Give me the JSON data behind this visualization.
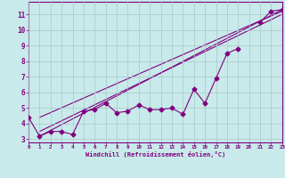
{
  "x": [
    0,
    1,
    2,
    3,
    4,
    5,
    6,
    7,
    8,
    9,
    10,
    11,
    12,
    13,
    14,
    15,
    16,
    17,
    18,
    19,
    20,
    21,
    22,
    23
  ],
  "line1": [
    4.4,
    3.2,
    3.5,
    3.5,
    3.3,
    4.8,
    4.9,
    5.3,
    4.7,
    4.8,
    5.2,
    4.9,
    4.9,
    5.0,
    4.6,
    6.2,
    5.3,
    6.9,
    8.5,
    8.8,
    null,
    10.5,
    11.2,
    11.3
  ],
  "line2_x": [
    1,
    23
  ],
  "line2_y": [
    3.2,
    11.3
  ],
  "line3_x": [
    1,
    23
  ],
  "line3_y": [
    3.5,
    11.0
  ],
  "line4_x": [
    1,
    23
  ],
  "line4_y": [
    4.4,
    11.2
  ],
  "color": "#800080",
  "bg_color": "#c8eaea",
  "grid_color": "#aac8c8",
  "xlabel": "Windchill (Refroidissement éolien,°C)",
  "ylabel_ticks": [
    3,
    4,
    5,
    6,
    7,
    8,
    9,
    10,
    11
  ],
  "xlim": [
    0,
    23
  ],
  "ylim": [
    2.8,
    11.8
  ],
  "xticks": [
    0,
    1,
    2,
    3,
    4,
    5,
    6,
    7,
    8,
    9,
    10,
    11,
    12,
    13,
    14,
    15,
    16,
    17,
    18,
    19,
    20,
    21,
    22,
    23
  ],
  "marker": "D",
  "markersize": 2.5,
  "linewidth": 0.8
}
